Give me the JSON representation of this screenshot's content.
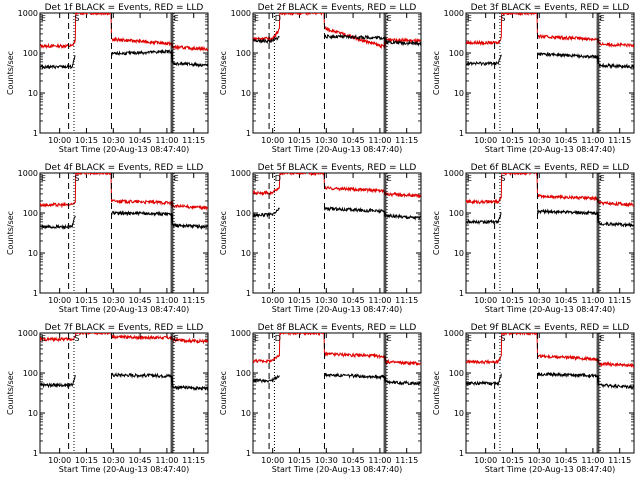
{
  "chart_data": [
    {
      "type": "line",
      "title": "Det 1f BLACK = Events, RED = LLD",
      "profile": "std",
      "bg": [
        45,
        55
      ],
      "rd": [
        150,
        140
      ],
      "flareBlack": [
        95,
        110
      ],
      "flareRed": [
        220,
        170
      ],
      "ylabel": "Counts/sec",
      "xlabel": "Start Time (20-Aug-13 08:47:40)",
      "ylim": [
        1,
        1000
      ],
      "xticks": [
        "10:00",
        "10:15",
        "10:30",
        "10:45",
        "11:00",
        "11:15"
      ],
      "yticks": [
        "1",
        "10",
        "100",
        "1000"
      ],
      "markers": [
        "E",
        "S",
        "E"
      ],
      "dashes": [],
      "series": [
        {
          "name": "BLACK",
          "color": "#000000"
        },
        {
          "name": "RED",
          "color": "#e00000"
        }
      ]
    },
    {
      "type": "line",
      "title": "Det 2f BLACK = Events, RED = LLD",
      "profile": "wide",
      "bg": [
        200,
        190
      ],
      "rd": [
        230,
        220
      ],
      "flareBlack": [
        260,
        240
      ],
      "flareRed": [
        400,
        260
      ],
      "ylabel": "Counts/sec",
      "xlabel": "Start Time (20-Aug-13 08:47:40)",
      "ylim": [
        1,
        1000
      ],
      "xticks": [
        "10:00",
        "10:15",
        "10:30",
        "10:45",
        "11:00",
        "11:15"
      ],
      "yticks": [
        "1",
        "10",
        "100",
        "1000"
      ],
      "markers": [
        "E",
        "D",
        "E"
      ],
      "dashes": [],
      "series": [
        {
          "name": "BLACK",
          "color": "#000000"
        },
        {
          "name": "RED",
          "color": "#e00000"
        }
      ]
    },
    {
      "type": "line",
      "title": "Det 3f BLACK = Events, RED = LLD",
      "profile": "std",
      "bg": [
        55,
        50
      ],
      "rd": [
        180,
        170
      ],
      "flareBlack": [
        95,
        80
      ],
      "flareRed": [
        260,
        220
      ],
      "ylabel": "Counts/sec",
      "xlabel": "Start Time (20-Aug-13 08:47:40)",
      "ylim": [
        1,
        1000
      ],
      "xticks": [
        "10:00",
        "10:15",
        "10:30",
        "10:45",
        "11:00",
        "11:15"
      ],
      "yticks": [
        "1",
        "10",
        "100",
        "1000"
      ],
      "markers": [
        "E",
        "S",
        "E"
      ],
      "dashes": [],
      "series": [
        {
          "name": "BLACK",
          "color": "#000000"
        },
        {
          "name": "RED",
          "color": "#e00000"
        }
      ]
    },
    {
      "type": "line",
      "title": "Det 4f BLACK = Events, RED = LLD",
      "profile": "std",
      "bg": [
        45,
        50
      ],
      "rd": [
        160,
        150
      ],
      "flareBlack": [
        100,
        95
      ],
      "flareRed": [
        200,
        180
      ],
      "ylabel": "Counts/sec",
      "xlabel": "Start Time (20-Aug-13 08:47:40)",
      "ylim": [
        1,
        1000
      ],
      "xticks": [
        "10:00",
        "10:15",
        "10:30",
        "10:45",
        "11:00",
        "11:15"
      ],
      "yticks": [
        "1",
        "10",
        "100",
        "1000"
      ],
      "markers": [
        "E",
        "S",
        "E"
      ],
      "dashes": [],
      "series": [
        {
          "name": "BLACK",
          "color": "#000000"
        },
        {
          "name": "RED",
          "color": "#e00000"
        }
      ]
    },
    {
      "type": "line",
      "title": "Det 5f BLACK = Events, RED = LLD",
      "profile": "wide",
      "bg": [
        90,
        85
      ],
      "rd": [
        320,
        300
      ],
      "flareBlack": [
        130,
        110
      ],
      "flareRed": [
        420,
        360
      ],
      "ylabel": "Counts/sec",
      "xlabel": "Start Time (20-Aug-13 08:47:40)",
      "ylim": [
        1,
        1000
      ],
      "xticks": [
        "10:00",
        "10:15",
        "10:30",
        "10:45",
        "11:00",
        "11:15"
      ],
      "yticks": [
        "1",
        "10",
        "100",
        "1000"
      ],
      "markers": [
        "E",
        "D",
        "E"
      ],
      "dashes": [],
      "series": [
        {
          "name": "BLACK",
          "color": "#000000"
        },
        {
          "name": "RED",
          "color": "#e00000"
        }
      ]
    },
    {
      "type": "line",
      "title": "Det 6f BLACK = Events, RED = LLD",
      "profile": "std",
      "bg": [
        60,
        55
      ],
      "rd": [
        190,
        180
      ],
      "flareBlack": [
        110,
        100
      ],
      "flareRed": [
        270,
        230
      ],
      "ylabel": "Counts/sec",
      "xlabel": "Start Time (20-Aug-13 08:47:40)",
      "ylim": [
        1,
        1000
      ],
      "xticks": [
        "10:00",
        "10:15",
        "10:30",
        "10:45",
        "11:00",
        "11:15"
      ],
      "yticks": [
        "1",
        "10",
        "100",
        "1000"
      ],
      "markers": [
        "E",
        "S",
        "E"
      ],
      "dashes": [],
      "series": [
        {
          "name": "BLACK",
          "color": "#000000"
        },
        {
          "name": "RED",
          "color": "#e00000"
        }
      ]
    },
    {
      "type": "line",
      "title": "Det 7f BLACK = Events, RED = LLD",
      "profile": "std",
      "bg": [
        50,
        45
      ],
      "rd": [
        700,
        680
      ],
      "flareBlack": [
        90,
        85
      ],
      "flareRed": [
        800,
        760
      ],
      "ylabel": "Counts/sec",
      "xlabel": "Start Time (20-Aug-13 08:47:40)",
      "ylim": [
        1,
        1000
      ],
      "xticks": [
        "10:00",
        "10:15",
        "10:30",
        "10:45",
        "11:00",
        "11:15"
      ],
      "yticks": [
        "1",
        "10",
        "100",
        "1000"
      ],
      "markers": [
        "E",
        "S",
        "E"
      ],
      "dashes": [],
      "series": [
        {
          "name": "BLACK",
          "color": "#000000"
        },
        {
          "name": "RED",
          "color": "#e00000"
        }
      ]
    },
    {
      "type": "line",
      "title": "Det 8f BLACK = Events, RED = LLD",
      "profile": "wide",
      "bg": [
        65,
        60
      ],
      "rd": [
        200,
        190
      ],
      "flareBlack": [
        90,
        80
      ],
      "flareRed": [
        300,
        260
      ],
      "ylabel": "Counts/sec",
      "xlabel": "Start Time (20-Aug-13 08:47:40)",
      "ylim": [
        1,
        1000
      ],
      "xticks": [
        "10:00",
        "10:15",
        "10:30",
        "10:45",
        "11:00",
        "11:15"
      ],
      "yticks": [
        "1",
        "10",
        "100",
        "1000"
      ],
      "markers": [
        "E",
        "D",
        "E"
      ],
      "dashes": [],
      "series": [
        {
          "name": "BLACK",
          "color": "#000000"
        },
        {
          "name": "RED",
          "color": "#e00000"
        }
      ]
    },
    {
      "type": "line",
      "title": "Det 9f BLACK = Events, RED = LLD",
      "profile": "std",
      "bg": [
        55,
        50
      ],
      "rd": [
        190,
        170
      ],
      "flareBlack": [
        95,
        85
      ],
      "flareRed": [
        270,
        220
      ],
      "ylabel": "Counts/sec",
      "xlabel": "Start Time (20-Aug-13 08:47:40)",
      "ylim": [
        1,
        1000
      ],
      "xticks": [
        "10:00",
        "10:15",
        "10:30",
        "10:45",
        "11:00",
        "11:15"
      ],
      "yticks": [
        "1",
        "10",
        "100",
        "1000"
      ],
      "markers": [
        "E",
        "S",
        "E"
      ],
      "dashes": [],
      "series": [
        {
          "name": "BLACK",
          "color": "#000000"
        },
        {
          "name": "RED",
          "color": "#e00000"
        }
      ]
    }
  ]
}
